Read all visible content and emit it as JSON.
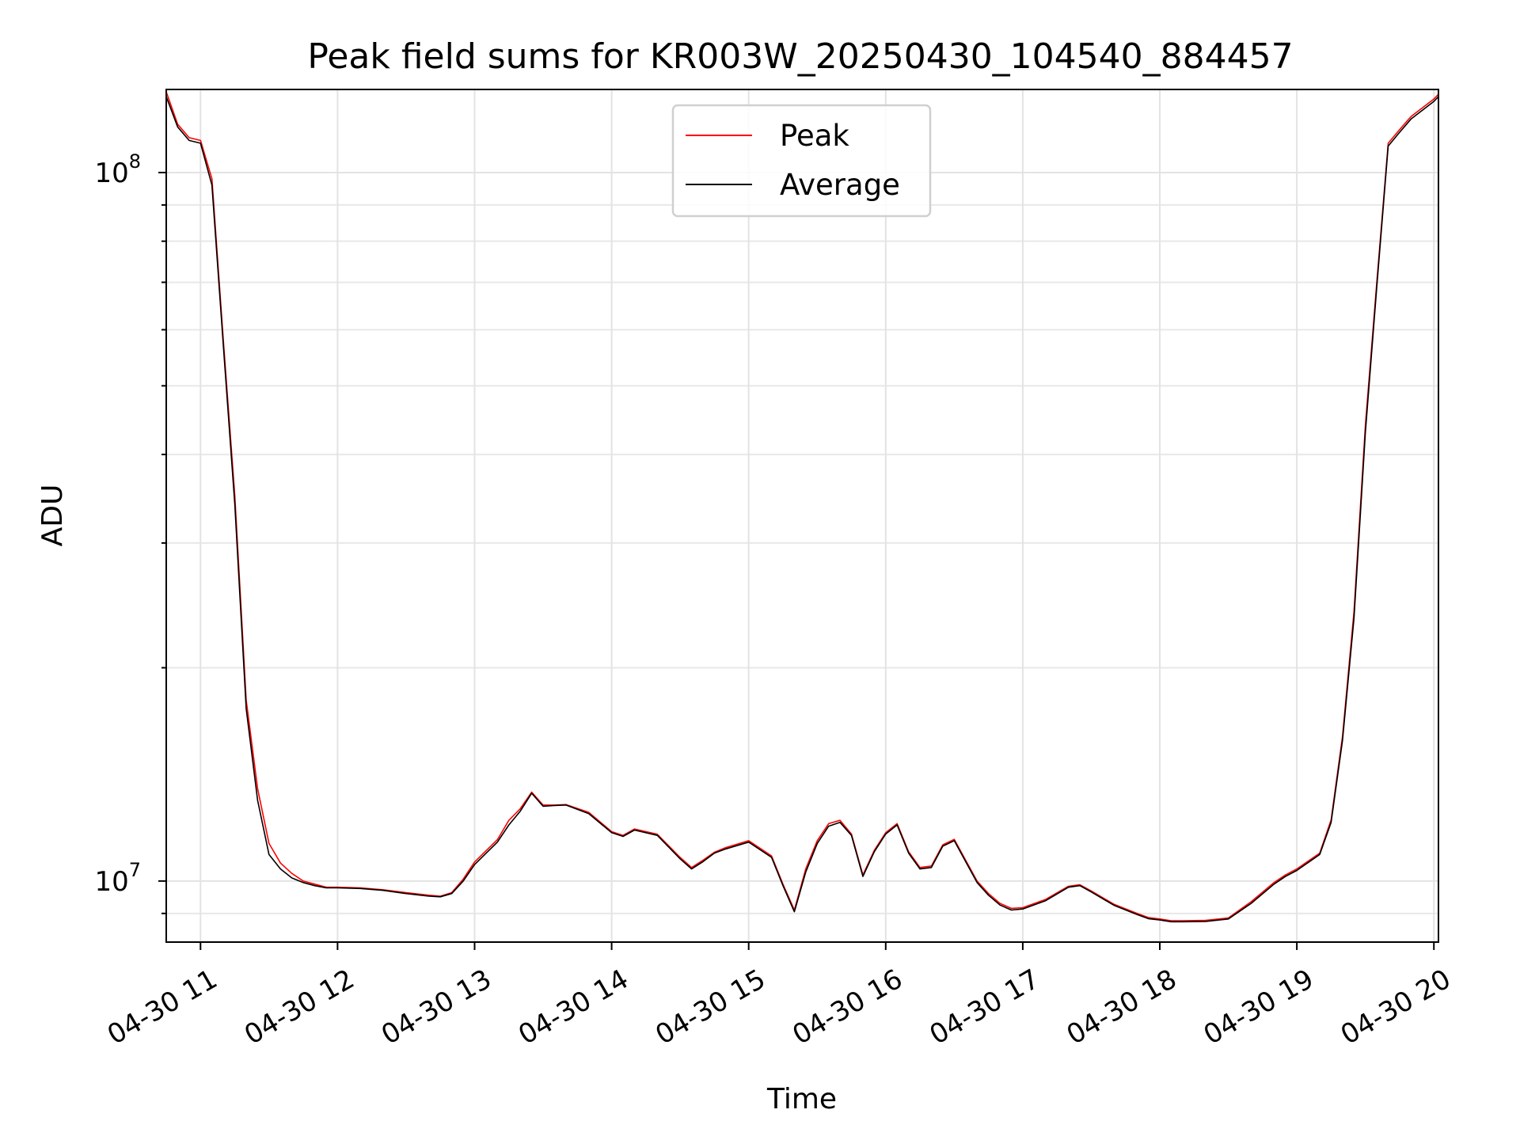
{
  "chart_data": {
    "type": "line",
    "title": "Peak field sums for KR003W_20250430_104540_884457",
    "xlabel": "Time",
    "ylabel": "ADU",
    "yscale": "log",
    "grid": "both major and minor",
    "legend_position": "upper center",
    "xlim": [
      "04-30 10:45",
      "04-30 20:02"
    ],
    "ylim": [
      8200000,
      131000000
    ],
    "x_ticks": [
      "04-30 11",
      "04-30 12",
      "04-30 13",
      "04-30 14",
      "04-30 15",
      "04-30 16",
      "04-30 17",
      "04-30 18",
      "04-30 19",
      "04-30 20"
    ],
    "y_ticks": [
      {
        "value": 10000000,
        "base": "10",
        "exp": "7"
      },
      {
        "value": 100000000,
        "base": "10",
        "exp": "8"
      }
    ],
    "x": [
      "10:45",
      "10:50",
      "10:55",
      "11:00",
      "11:05",
      "11:10",
      "11:15",
      "11:20",
      "11:25",
      "11:30",
      "11:35",
      "11:40",
      "11:45",
      "11:50",
      "11:55",
      "12:00",
      "12:10",
      "12:20",
      "12:30",
      "12:40",
      "12:45",
      "12:50",
      "12:55",
      "13:00",
      "13:10",
      "13:15",
      "13:20",
      "13:25",
      "13:30",
      "13:35",
      "13:40",
      "13:50",
      "14:00",
      "14:05",
      "14:10",
      "14:20",
      "14:30",
      "14:35",
      "14:40",
      "14:45",
      "14:50",
      "15:00",
      "15:10",
      "15:15",
      "15:20",
      "15:25",
      "15:30",
      "15:35",
      "15:40",
      "15:45",
      "15:50",
      "15:55",
      "16:00",
      "16:05",
      "16:10",
      "16:15",
      "16:20",
      "16:25",
      "16:30",
      "16:35",
      "16:40",
      "16:45",
      "16:50",
      "16:55",
      "17:00",
      "17:10",
      "17:20",
      "17:25",
      "17:30",
      "17:40",
      "17:50",
      "17:55",
      "18:00",
      "18:05",
      "18:10",
      "18:20",
      "18:30",
      "18:40",
      "18:50",
      "18:55",
      "19:00",
      "19:10",
      "19:15",
      "19:20",
      "19:25",
      "19:30",
      "19:35",
      "19:40",
      "19:45",
      "19:50",
      "20:00",
      "20:02"
    ],
    "series": [
      {
        "name": "Peak",
        "color": "#ff0000",
        "values": [
          130000000,
          117000000,
          112000000,
          111000000,
          98000000,
          58000000,
          35000000,
          18000000,
          13500000,
          11300000,
          10600000,
          10250000,
          10000000,
          9900000,
          9800000,
          9800000,
          9780000,
          9720000,
          9630000,
          9550000,
          9520000,
          9630000,
          10060000,
          10640000,
          11440000,
          12180000,
          12650000,
          13350000,
          12800000,
          12800000,
          12820000,
          12500000,
          11740000,
          11600000,
          11840000,
          11640000,
          10800000,
          10450000,
          10700000,
          10980000,
          11150000,
          11400000,
          10850000,
          9900000,
          9100000,
          10400000,
          11400000,
          12050000,
          12180000,
          11650000,
          10200000,
          11050000,
          11700000,
          12050000,
          11000000,
          10450000,
          10500000,
          11250000,
          11450000,
          10700000,
          10000000,
          9600000,
          9300000,
          9150000,
          9170000,
          9420000,
          9830000,
          9880000,
          9680000,
          9270000,
          9000000,
          8880000,
          8840000,
          8790000,
          8790000,
          8800000,
          8870000,
          9350000,
          9950000,
          10200000,
          10400000,
          10950000,
          12200000,
          16000000,
          24000000,
          44000000,
          70000000,
          110000000,
          115000000,
          120000000,
          127000000,
          129000000
        ]
      },
      {
        "name": "Average",
        "color": "#000000",
        "values": [
          128000000,
          116000000,
          111000000,
          110000000,
          96000000,
          57000000,
          34000000,
          17500000,
          13000000,
          10900000,
          10400000,
          10100000,
          9950000,
          9850000,
          9780000,
          9780000,
          9760000,
          9700000,
          9600000,
          9520000,
          9500000,
          9600000,
          10000000,
          10550000,
          11350000,
          12000000,
          12550000,
          13300000,
          12750000,
          12780000,
          12800000,
          12450000,
          11700000,
          11560000,
          11800000,
          11600000,
          10750000,
          10400000,
          10650000,
          10950000,
          11100000,
          11350000,
          10800000,
          9850000,
          9050000,
          10300000,
          11300000,
          11950000,
          12100000,
          11600000,
          10150000,
          11000000,
          11650000,
          12000000,
          10950000,
          10400000,
          10450000,
          11200000,
          11400000,
          10650000,
          9950000,
          9550000,
          9250000,
          9100000,
          9130000,
          9380000,
          9800000,
          9850000,
          9650000,
          9240000,
          8970000,
          8850000,
          8810000,
          8760000,
          8760000,
          8770000,
          8840000,
          9300000,
          9900000,
          10150000,
          10350000,
          10900000,
          12100000,
          15800000,
          23500000,
          43000000,
          69000000,
          109000000,
          114000000,
          119000000,
          126000000,
          128000000
        ]
      }
    ]
  }
}
